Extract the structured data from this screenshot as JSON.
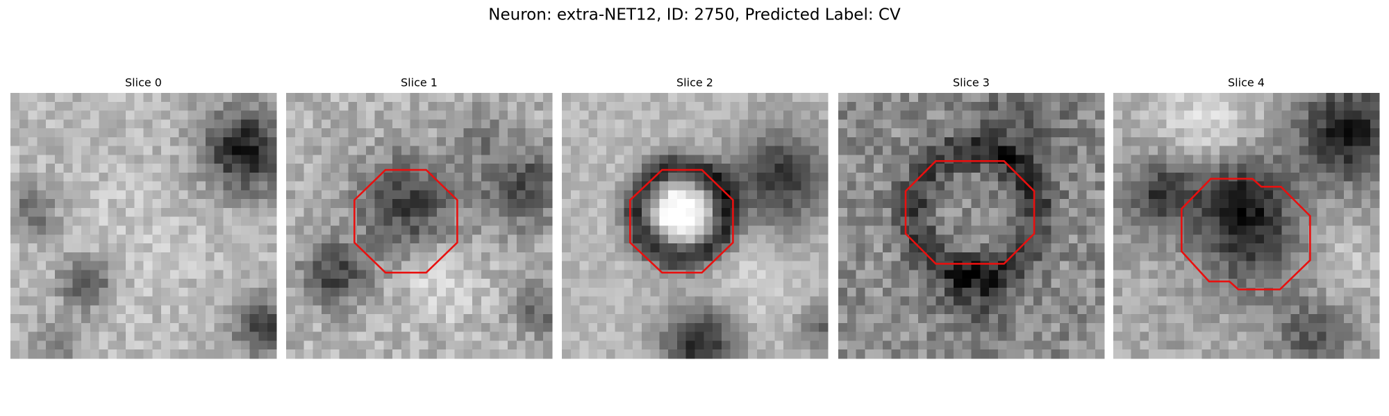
{
  "title": "Neuron: extra-NET12, ID: 2750, Predicted Label: CV",
  "panels": [
    {
      "title": "Slice 0"
    },
    {
      "title": "Slice 1"
    },
    {
      "title": "Slice 2"
    },
    {
      "title": "Slice 3"
    },
    {
      "title": "Slice 4"
    }
  ]
}
